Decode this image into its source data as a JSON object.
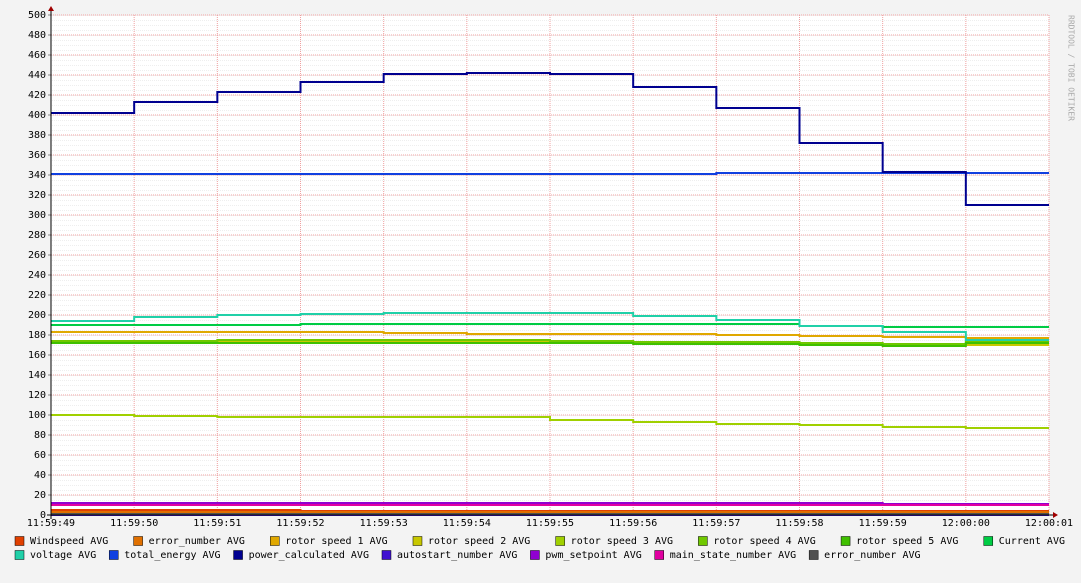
{
  "chart_data": {
    "type": "line",
    "step": true,
    "watermark": "RRDTOOL / TOBI OETIKER",
    "categories": [
      "11:59:49",
      "11:59:50",
      "11:59:51",
      "11:59:52",
      "11:59:53",
      "11:59:54",
      "11:59:55",
      "11:59:56",
      "11:59:57",
      "11:59:58",
      "11:59:59",
      "12:00:00",
      "12:00:01"
    ],
    "ylim": [
      0,
      500
    ],
    "yticks": [
      0,
      20,
      40,
      60,
      80,
      100,
      120,
      140,
      160,
      180,
      200,
      220,
      240,
      260,
      280,
      300,
      320,
      340,
      360,
      380,
      400,
      420,
      440,
      460,
      480,
      500
    ],
    "grid": true,
    "series": [
      {
        "name": "Windspeed AVG",
        "color": "#e04000",
        "values": [
          5,
          5,
          5,
          4,
          4,
          4,
          4,
          4,
          4,
          4,
          4,
          4,
          4
        ]
      },
      {
        "name": "error_number AVG",
        "color": "#e07000",
        "values": [
          3,
          3,
          3,
          3,
          3,
          3,
          3,
          3,
          3,
          3,
          3,
          3,
          3
        ]
      },
      {
        "name": "rotor speed 1 AVG",
        "color": "#e0a800",
        "values": [
          183,
          183,
          183,
          183,
          182,
          181,
          181,
          181,
          180,
          179,
          178,
          177,
          177
        ]
      },
      {
        "name": "rotor speed 2 AVG",
        "color": "#c8c800",
        "values": [
          172,
          172,
          173,
          173,
          174,
          174,
          173,
          172,
          172,
          171,
          170,
          170,
          170
        ]
      },
      {
        "name": "rotor speed 3 AVG",
        "color": "#a0d000",
        "values": [
          100,
          99,
          98,
          98,
          98,
          98,
          95,
          93,
          91,
          90,
          88,
          87,
          87
        ]
      },
      {
        "name": "rotor speed 4 AVG",
        "color": "#70c800",
        "values": [
          174,
          174,
          175,
          175,
          175,
          175,
          174,
          173,
          173,
          172,
          171,
          173,
          173
        ]
      },
      {
        "name": "rotor speed 5 AVG",
        "color": "#40c000",
        "values": [
          172,
          172,
          172,
          172,
          172,
          172,
          172,
          171,
          171,
          170,
          169,
          172,
          172
        ]
      },
      {
        "name": "Current AVG",
        "color": "#00cc44",
        "values": [
          190,
          190,
          190,
          191,
          191,
          191,
          191,
          191,
          191,
          189,
          188,
          188,
          188
        ]
      },
      {
        "name": "voltage AVG",
        "color": "#20d0a8",
        "values": [
          194,
          198,
          200,
          201,
          202,
          202,
          202,
          199,
          195,
          189,
          183,
          175,
          175
        ]
      },
      {
        "name": "total_energy AVG",
        "color": "#1040e0",
        "values": [
          341,
          341,
          341,
          341,
          341,
          341,
          341,
          341,
          342,
          342,
          342,
          342,
          342
        ]
      },
      {
        "name": "power_calculated AVG",
        "color": "#000090",
        "values": [
          402,
          413,
          423,
          433,
          441,
          442,
          441,
          428,
          407,
          372,
          343,
          310,
          310
        ]
      },
      {
        "name": "autostart_number AVG",
        "color": "#4010d0",
        "values": [
          0,
          0,
          0,
          0,
          0,
          0,
          0,
          0,
          0,
          0,
          0,
          0,
          0
        ]
      },
      {
        "name": "pwm_setpoint AVG",
        "color": "#9000d0",
        "values": [
          12,
          12,
          12,
          12,
          12,
          12,
          12,
          12,
          12,
          12,
          11,
          11,
          11
        ]
      },
      {
        "name": "main_state_number AVG",
        "color": "#e000a0",
        "values": [
          10,
          10,
          10,
          10,
          10,
          10,
          10,
          10,
          10,
          10,
          10,
          10,
          10
        ]
      },
      {
        "name": "error_number AVG",
        "color": "#505050",
        "values": [
          1,
          1,
          1,
          1,
          1,
          1,
          1,
          1,
          1,
          1,
          1,
          1,
          1
        ]
      }
    ]
  }
}
